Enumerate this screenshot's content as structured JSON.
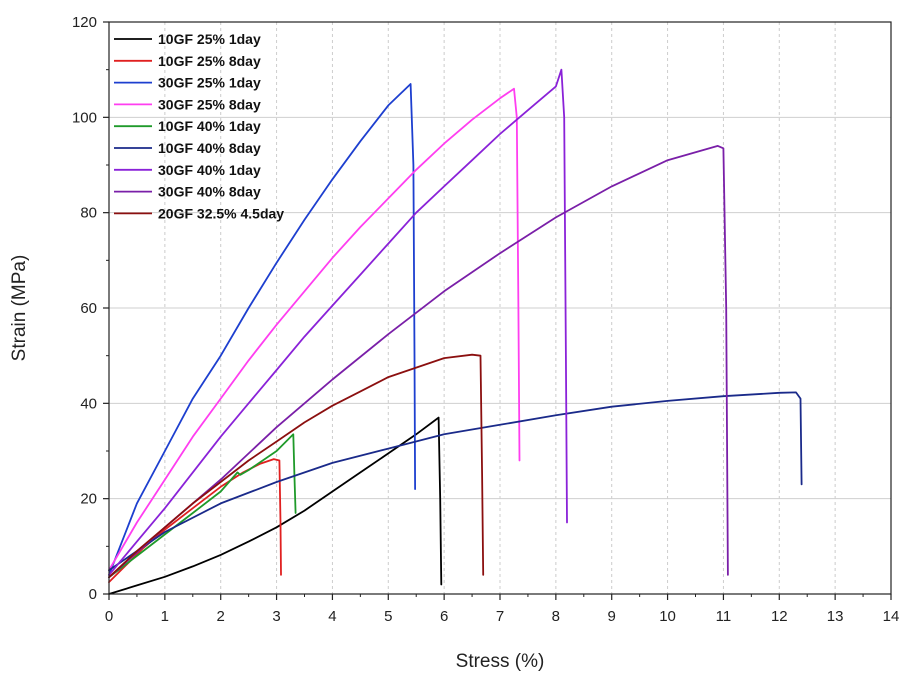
{
  "chart_data": {
    "type": "line",
    "title": "",
    "xlabel": "Stress (%)",
    "ylabel": "Strain (MPa)",
    "xlim": [
      0,
      14
    ],
    "ylim": [
      0,
      120
    ],
    "xticks": [
      "0",
      "1",
      "2",
      "3",
      "4",
      "5",
      "6",
      "7",
      "8",
      "9",
      "10",
      "11",
      "12",
      "13",
      "14"
    ],
    "yticks": [
      "0",
      "20",
      "40",
      "60",
      "80",
      "100",
      "120"
    ],
    "grid": true,
    "legend_position": "top-left",
    "series": [
      {
        "name": "10GF 25% 1day",
        "color": "#000000",
        "x": [
          0,
          0.5,
          1,
          1.5,
          2,
          2.5,
          3,
          3.5,
          4,
          4.5,
          5,
          5.5,
          5.9,
          5.93,
          5.95
        ],
        "y": [
          0,
          1.8,
          3.6,
          5.8,
          8.2,
          11,
          14,
          17.5,
          21.5,
          25.5,
          29.5,
          33.5,
          37,
          20,
          2
        ]
      },
      {
        "name": "10GF 25% 8day",
        "color": "#e02020",
        "x": [
          0,
          0.3,
          0.6,
          1,
          1.5,
          2,
          2.4,
          2.7,
          2.95,
          3.05,
          3.07,
          3.08
        ],
        "y": [
          2.5,
          6,
          9.5,
          13.5,
          18,
          22.5,
          25.5,
          27.3,
          28.3,
          28,
          15,
          4
        ]
      },
      {
        "name": "30GF 25% 1day",
        "color": "#1d3fcf",
        "x": [
          0,
          0.5,
          1,
          1.5,
          2,
          2.5,
          3,
          3.5,
          4,
          4.5,
          5,
          5.4,
          5.45,
          5.47,
          5.48
        ],
        "y": [
          4,
          19,
          30,
          41,
          50,
          60,
          69.5,
          78.5,
          87,
          95,
          102.5,
          107,
          90,
          50,
          22
        ]
      },
      {
        "name": "30GF 25% 8day",
        "color": "#ff3ef0",
        "x": [
          0,
          0.5,
          1,
          1.5,
          2,
          2.5,
          3,
          3.5,
          4,
          4.5,
          5,
          5.5,
          6,
          6.5,
          7,
          7.25,
          7.3,
          7.33,
          7.35
        ],
        "y": [
          5,
          15,
          24,
          33,
          41,
          49,
          56.5,
          63.5,
          70.5,
          77,
          83,
          89,
          94.5,
          99.5,
          104,
          106,
          100,
          60,
          28
        ]
      },
      {
        "name": "10GF 40% 1day",
        "color": "#1f9a2a",
        "x": [
          0,
          0.5,
          1,
          1.5,
          2,
          2.3,
          2.35,
          2.5,
          3,
          3.3,
          3.32,
          3.34
        ],
        "y": [
          3.5,
          8,
          12.5,
          17,
          21.5,
          25.5,
          25,
          26,
          30,
          33.5,
          25,
          17
        ]
      },
      {
        "name": "10GF 40% 8day",
        "color": "#1a2a8a",
        "x": [
          0,
          1,
          2,
          3,
          4,
          5,
          6,
          7,
          8,
          9,
          10,
          11,
          12,
          12.3,
          12.38,
          12.4
        ],
        "y": [
          5,
          13,
          19,
          23.5,
          27.5,
          30.5,
          33.5,
          35.5,
          37.5,
          39.3,
          40.5,
          41.5,
          42.2,
          42.3,
          41,
          23
        ]
      },
      {
        "name": "30GF 40% 1day",
        "color": "#8a22d8",
        "x": [
          0,
          0.5,
          1,
          1.5,
          2,
          2.5,
          3,
          3.5,
          4,
          4.5,
          5,
          5.5,
          6,
          6.5,
          7,
          7.5,
          8,
          8.1,
          8.15,
          8.18,
          8.2
        ],
        "y": [
          4,
          11,
          18,
          25.5,
          33,
          40,
          47,
          54,
          60.5,
          67,
          73.5,
          80,
          85.5,
          91,
          96.5,
          101.5,
          106.5,
          110,
          100,
          50,
          15
        ]
      },
      {
        "name": "30GF 40% 8day",
        "color": "#7a1fa8",
        "x": [
          0,
          1,
          2,
          3,
          4,
          5,
          6,
          7,
          8,
          9,
          10,
          10.9,
          11.0,
          11.05,
          11.08
        ],
        "y": [
          3.5,
          14,
          24,
          35,
          45,
          54.5,
          63.5,
          71.5,
          79,
          85.5,
          91,
          94,
          93.5,
          60,
          4
        ]
      },
      {
        "name": "20GF 32.5% 4.5day",
        "color": "#8b0f0f",
        "x": [
          0,
          0.5,
          1,
          1.5,
          2,
          2.5,
          3,
          3.5,
          4,
          4.5,
          5,
          5.5,
          6,
          6.5,
          6.65,
          6.68,
          6.7
        ],
        "y": [
          3.5,
          9,
          14,
          19,
          23.5,
          28,
          32,
          36,
          39.5,
          42.5,
          45.5,
          47.5,
          49.5,
          50.2,
          50,
          25,
          4
        ]
      }
    ]
  }
}
